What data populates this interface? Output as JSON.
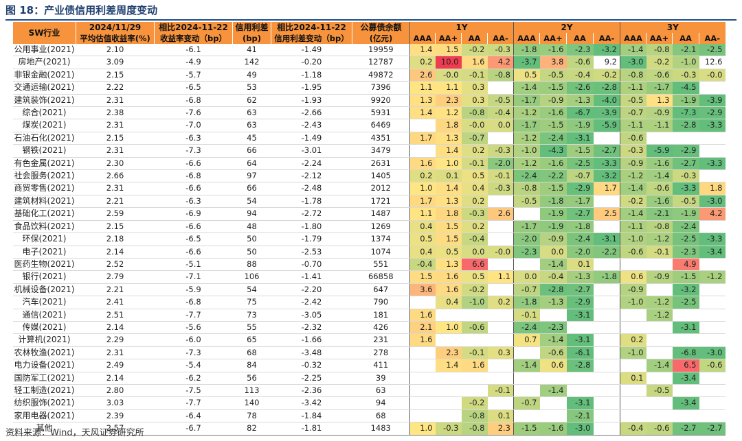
{
  "title": "图 18：产业债信用利差周度变动",
  "source": "资料来源：Wind，天风证券研究所",
  "header": {
    "industry": "SW行业",
    "date": "2024/11/29",
    "yield_label": "平均估值收益率(%)",
    "cmp1": "相比2024-11-22",
    "cmp1_sub": "收益率变动（bp）",
    "spread": "信用利差",
    "spread_unit": "(bp)",
    "cmp2": "相比2024-11-22",
    "cmp2_sub": "信用利差变动（bp）",
    "balance": "公募债余额",
    "balance_unit": "(亿元)",
    "tenors": [
      "1Y",
      "2Y",
      "3Y"
    ],
    "ratings": [
      "AAA",
      "AA+",
      "AA",
      "AA-"
    ]
  },
  "rows": [
    {
      "ind": "公用事业(2021)",
      "y": "2.10",
      "dy": "-6.1",
      "s": "41",
      "ds": "-1.49",
      "bal": "19959",
      "v": [
        "1.4",
        "1.5",
        "-0.2",
        "-0.3",
        "-1.8",
        "-1.6",
        "-2.3",
        "-3.2",
        "-1.4",
        "-0.8",
        "-2.1",
        "-2.5"
      ]
    },
    {
      "ind": "房地产(2021)",
      "y": "3.09",
      "dy": "-4.9",
      "s": "142",
      "ds": "-0.20",
      "bal": "12787",
      "v": [
        "0.2",
        "10.0",
        "1.6",
        "4.2",
        "-3.7",
        "3.8",
        "-0.6",
        "9.2",
        "-3.0",
        "-0.2",
        "-1.0",
        "12.6"
      ]
    },
    {
      "ind": "非银金融(2021)",
      "y": "2.15",
      "dy": "-5.7",
      "s": "49",
      "ds": "-1.18",
      "bal": "49872",
      "v": [
        "2.6",
        "-0.0",
        "-0.1",
        "-0.8",
        "0.5",
        "-0.5",
        "-0.4",
        "-0.2",
        "-0.8",
        "-0.6",
        "-0.3",
        "-0.0"
      ]
    },
    {
      "ind": "交通运输(2021)",
      "y": "2.22",
      "dy": "-6.5",
      "s": "53",
      "ds": "-1.95",
      "bal": "7396",
      "v": [
        "1.1",
        "1.1",
        "0.3",
        "",
        "-1.4",
        "-1.5",
        "-2.6",
        "-2.8",
        "-1.1",
        "-1.7",
        "-4.5",
        ""
      ]
    },
    {
      "ind": "建筑装饰(2021)",
      "y": "2.31",
      "dy": "-6.8",
      "s": "62",
      "ds": "-1.93",
      "bal": "9920",
      "v": [
        "1.3",
        "2.3",
        "0.3",
        "-0.5",
        "-1.7",
        "-0.9",
        "-1.3",
        "-4.0",
        "-0.5",
        "1.3",
        "-1.9",
        "-3.9"
      ]
    },
    {
      "ind": "综合(2021)",
      "y": "2.38",
      "dy": "-7.6",
      "s": "63",
      "ds": "-2.66",
      "bal": "5931",
      "v": [
        "1.4",
        "1.2",
        "-0.8",
        "-0.4",
        "-1.2",
        "-1.6",
        "-6.7",
        "-3.9",
        "-0.7",
        "-0.9",
        "-7.3",
        "-2.9"
      ]
    },
    {
      "ind": "煤炭(2021)",
      "y": "2.31",
      "dy": "-7.0",
      "s": "63",
      "ds": "-2.43",
      "bal": "6469",
      "v": [
        "",
        "1.8",
        "-0.0",
        "0.0",
        "-1.7",
        "-1.5",
        "-1.9",
        "-5.9",
        "-1.1",
        "-1.1",
        "-2.8",
        "-3.3"
      ]
    },
    {
      "ind": "石油石化(2021)",
      "y": "2.15",
      "dy": "-6.3",
      "s": "45",
      "ds": "-1.49",
      "bal": "4351",
      "v": [
        "1.7",
        "1.3",
        "-0.7",
        "",
        "-1.2",
        "-2.4",
        "-3.1",
        "",
        "-0.6",
        "",
        "",
        ""
      ]
    },
    {
      "ind": "钢铁(2021)",
      "y": "2.31",
      "dy": "-7.3",
      "s": "66",
      "ds": "-3.01",
      "bal": "3479",
      "v": [
        "",
        "1.4",
        "0.2",
        "-0.3",
        "-1.0",
        "-4.3",
        "-1.5",
        "-2.7",
        "-0.3",
        "-5.9",
        "-2.9",
        ""
      ]
    },
    {
      "ind": "有色金属(2021)",
      "y": "2.30",
      "dy": "-6.6",
      "s": "64",
      "ds": "-2.24",
      "bal": "2631",
      "v": [
        "1.6",
        "1.0",
        "-0.1",
        "-2.0",
        "-1.2",
        "-1.6",
        "-2.5",
        "-3.3",
        "-0.9",
        "-1.6",
        "-2.7",
        "-3.3"
      ]
    },
    {
      "ind": "社会服务(2021)",
      "y": "2.66",
      "dy": "-6.8",
      "s": "97",
      "ds": "-2.12",
      "bal": "1405",
      "v": [
        "0.2",
        "0.1",
        "0.5",
        "-0.1",
        "-2.4",
        "-2.2",
        "-0.7",
        "-3.2",
        "-1.2",
        "-1.4",
        "-0.3",
        ""
      ]
    },
    {
      "ind": "商贸零售(2021)",
      "y": "2.31",
      "dy": "-6.6",
      "s": "66",
      "ds": "-2.48",
      "bal": "2012",
      "v": [
        "1.0",
        "1.4",
        "0.4",
        "-0.3",
        "-0.8",
        "-1.5",
        "-2.9",
        "1.7",
        "-1.4",
        "-0.6",
        "-3.3",
        "1.8"
      ]
    },
    {
      "ind": "建筑材料(2021)",
      "y": "2.21",
      "dy": "-6.3",
      "s": "54",
      "ds": "-1.78",
      "bal": "1721",
      "v": [
        "1.7",
        "1.3",
        "0.2",
        "",
        "-0.5",
        "-1.8",
        "-1.7",
        "",
        "-0.2",
        "-1.6",
        "-0.5",
        "-3.0"
      ]
    },
    {
      "ind": "基础化工(2021)",
      "y": "2.59",
      "dy": "-6.9",
      "s": "94",
      "ds": "-2.72",
      "bal": "1487",
      "v": [
        "1.1",
        "1.8",
        "-0.3",
        "2.6",
        "",
        "-1.9",
        "-2.7",
        "2.5",
        "-1.4",
        "-2.1",
        "-1.9",
        "4.2"
      ]
    },
    {
      "ind": "食品饮料(2021)",
      "y": "2.15",
      "dy": "-6.6",
      "s": "48",
      "ds": "-1.80",
      "bal": "1269",
      "v": [
        "0.4",
        "1.5",
        "0.2",
        "",
        "-1.7",
        "-1.9",
        "-1.8",
        "",
        "-1.1",
        "-0.8",
        "-2.4",
        ""
      ]
    },
    {
      "ind": "环保(2021)",
      "y": "2.18",
      "dy": "-6.5",
      "s": "50",
      "ds": "-1.79",
      "bal": "1374",
      "v": [
        "0.5",
        "1.5",
        "-0.4",
        "",
        "-2.0",
        "-0.9",
        "-2.4",
        "-3.1",
        "-1.0",
        "-1.2",
        "-2.5",
        "-3.3"
      ]
    },
    {
      "ind": "电子(2021)",
      "y": "2.14",
      "dy": "-6.6",
      "s": "50",
      "ds": "-2.53",
      "bal": "1074",
      "v": [
        "0.4",
        "0.5",
        "0.0",
        "-0.0",
        "-2.3",
        "0.0",
        "-2.0",
        "-2.2",
        "-0.6",
        "-0.1",
        "-2.3",
        "-3.4"
      ]
    },
    {
      "ind": "医药生物(2021)",
      "y": "2.52",
      "dy": "-5.1",
      "s": "88",
      "ds": "-0.70",
      "bal": "551",
      "v": [
        "-0.4",
        "1.3",
        "6.6",
        "",
        "",
        "-1.4",
        "0.1",
        "",
        "",
        "",
        "4.9",
        ""
      ]
    },
    {
      "ind": "银行(2021)",
      "y": "2.79",
      "dy": "-7.1",
      "s": "106",
      "ds": "-1.41",
      "bal": "66858",
      "v": [
        "1.5",
        "1.6",
        "0.5",
        "1.1",
        "0.0",
        "-0.4",
        "-1.3",
        "-1.8",
        "0.6",
        "-0.9",
        "-1.5",
        "-1.2"
      ]
    },
    {
      "ind": "机械设备(2021)",
      "y": "2.21",
      "dy": "-5.9",
      "s": "54",
      "ds": "-2.20",
      "bal": "647",
      "v": [
        "3.6",
        "1.6",
        "-0.2",
        "",
        "-0.7",
        "-2.8",
        "-2.7",
        "",
        "-0.9",
        "",
        "-3.2",
        ""
      ]
    },
    {
      "ind": "汽车(2021)",
      "y": "2.41",
      "dy": "-6.8",
      "s": "75",
      "ds": "-2.42",
      "bal": "790",
      "v": [
        "",
        "0.4",
        "-1.0",
        "0.2",
        "-1.8",
        "-1.3",
        "-2.9",
        "",
        "-1.0",
        "-1.2",
        "-2.5",
        ""
      ]
    },
    {
      "ind": "通信(2021)",
      "y": "2.51",
      "dy": "-7.7",
      "s": "73",
      "ds": "-3.05",
      "bal": "181",
      "v": [
        "1.6",
        "",
        "",
        "",
        "-0.1",
        "",
        "-3.1",
        "",
        "",
        "-1.2",
        "",
        ""
      ]
    },
    {
      "ind": "传媒(2021)",
      "y": "2.14",
      "dy": "-5.6",
      "s": "55",
      "ds": "-2.32",
      "bal": "426",
      "v": [
        "2.1",
        "1.0",
        "-0.6",
        "",
        "-2.4",
        "-2.3",
        "",
        "",
        "",
        "",
        "-3.1",
        ""
      ]
    },
    {
      "ind": "计算机(2021)",
      "y": "2.29",
      "dy": "-6.0",
      "s": "65",
      "ds": "-1.66",
      "bal": "231",
      "v": [
        "1.6",
        "",
        "",
        "",
        "0.7",
        "-1.4",
        "-3.1",
        "",
        "0.2",
        "",
        "",
        ""
      ]
    },
    {
      "ind": "农林牧渔(2021)",
      "y": "2.31",
      "dy": "-7.3",
      "s": "68",
      "ds": "-3.48",
      "bal": "278",
      "v": [
        "",
        "2.3",
        "-0.1",
        "0.3",
        "",
        "-0.6",
        "-6.1",
        "",
        "-1.0",
        "",
        "-6.8",
        "-3.0"
      ]
    },
    {
      "ind": "电力设备(2021)",
      "y": "2.49",
      "dy": "-5.4",
      "s": "84",
      "ds": "-0.32",
      "bal": "411",
      "v": [
        "",
        "1.4",
        "1.6",
        "",
        "-1.4",
        "0.6",
        "-2.8",
        "",
        "",
        "-1.4",
        "6.5",
        "-0.6"
      ]
    },
    {
      "ind": "国防军工(2021)",
      "y": "2.14",
      "dy": "-6.2",
      "s": "56",
      "ds": "-2.25",
      "bal": "39",
      "v": [
        "",
        "",
        "",
        "",
        "",
        "",
        "",
        "",
        "0.1",
        "",
        "-3.4",
        ""
      ]
    },
    {
      "ind": "轻工制造(2021)",
      "y": "2.80",
      "dy": "-7.5",
      "s": "113",
      "ds": "-2.36",
      "bal": "63",
      "v": [
        "",
        "",
        "",
        "-0.1",
        "",
        "-1.4",
        "",
        "",
        "",
        "-0.5",
        "",
        ""
      ]
    },
    {
      "ind": "纺织服饰(2021)",
      "y": "3.03",
      "dy": "-7.7",
      "s": "140",
      "ds": "-3.42",
      "bal": "94",
      "v": [
        "",
        "",
        "-0.2",
        "",
        "-0.7",
        "",
        "-3.1",
        "",
        "",
        "",
        "-3.4",
        ""
      ]
    },
    {
      "ind": "家用电器(2021)",
      "y": "2.39",
      "dy": "-6.4",
      "s": "78",
      "ds": "-1.84",
      "bal": "68",
      "v": [
        "",
        "",
        "-0.8",
        "0.1",
        "",
        "",
        "-2.1",
        "",
        "",
        "",
        "",
        ""
      ]
    },
    {
      "ind": "其他",
      "y": "2.57",
      "dy": "-6.7",
      "s": "82",
      "ds": "-1.81",
      "bal": "1483",
      "v": [
        "1.0",
        "-0.3",
        "-0.8",
        "2.3",
        "-1.5",
        "-1.6",
        "-3.0",
        "",
        "-0.4",
        "-0.6",
        "-2.7",
        "-2.7"
      ]
    }
  ]
}
